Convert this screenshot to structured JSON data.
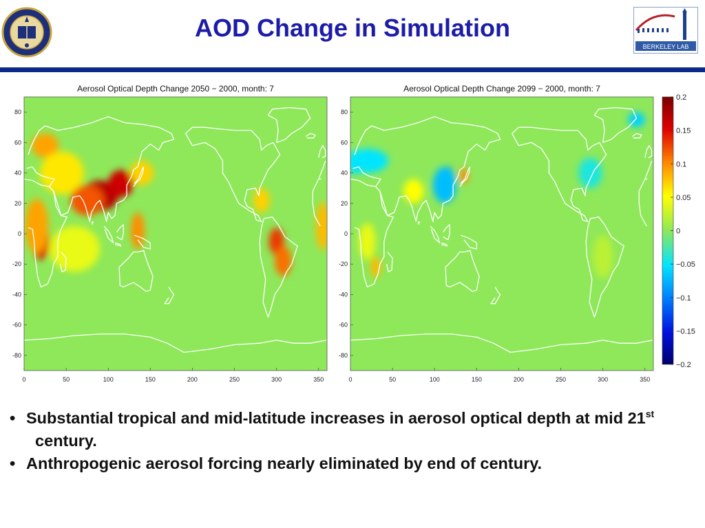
{
  "slide": {
    "title": "AOD Change in Simulation",
    "logo_left": "University of California seal logo",
    "logo_right_text": "BERKELEY LAB"
  },
  "colors": {
    "title": "#1c1ca8",
    "rule": "#0a2a8a",
    "map_background": "#8ee85a",
    "coastline": "#ffffff"
  },
  "bullets": [
    {
      "text": "Substantial tropical and mid-latitude increases in aerosol optical depth at mid 21",
      "sup": "st",
      "tail": "  century."
    },
    {
      "text": "Anthropogenic aerosol forcing nearly eliminated by end of century."
    }
  ],
  "chart_data": [
    {
      "type": "heatmap",
      "title": "Aerosol Optical Depth Change 2050 − 2000, month: 7",
      "xlim": [
        0,
        360
      ],
      "ylim": [
        -90,
        90
      ],
      "x_ticks": [
        0,
        50,
        100,
        150,
        200,
        250,
        300,
        350
      ],
      "y_ticks": [
        80,
        60,
        40,
        20,
        0,
        -20,
        -40,
        -60,
        -80
      ],
      "value_range": [
        -0.2,
        0.2
      ],
      "hotspots": [
        {
          "lon": 90,
          "lat": 25,
          "value": 0.17,
          "rx": 22,
          "ry": 10
        },
        {
          "lon": 115,
          "lat": 33,
          "value": 0.16,
          "rx": 15,
          "ry": 9
        },
        {
          "lon": 75,
          "lat": 22,
          "value": 0.12,
          "rx": 20,
          "ry": 10
        },
        {
          "lon": 20,
          "lat": -5,
          "value": 0.15,
          "rx": 10,
          "ry": 12
        },
        {
          "lon": 15,
          "lat": 5,
          "value": 0.09,
          "rx": 14,
          "ry": 18
        },
        {
          "lon": 25,
          "lat": 58,
          "value": 0.09,
          "rx": 16,
          "ry": 8
        },
        {
          "lon": 45,
          "lat": 40,
          "value": 0.06,
          "rx": 26,
          "ry": 14
        },
        {
          "lon": 140,
          "lat": 40,
          "value": 0.07,
          "rx": 14,
          "ry": 8
        },
        {
          "lon": 135,
          "lat": 2,
          "value": 0.1,
          "rx": 8,
          "ry": 12
        },
        {
          "lon": 300,
          "lat": -5,
          "value": 0.13,
          "rx": 9,
          "ry": 9
        },
        {
          "lon": 308,
          "lat": -18,
          "value": 0.11,
          "rx": 10,
          "ry": 10
        },
        {
          "lon": 282,
          "lat": 22,
          "value": 0.07,
          "rx": 10,
          "ry": 8
        },
        {
          "lon": 355,
          "lat": 5,
          "value": 0.08,
          "rx": 8,
          "ry": 16
        },
        {
          "lon": 60,
          "lat": -10,
          "value": 0.04,
          "rx": 30,
          "ry": 15
        }
      ]
    },
    {
      "type": "heatmap",
      "title": "Aerosol Optical Depth Change 2099 − 2000, month: 7",
      "xlim": [
        0,
        360
      ],
      "ylim": [
        -90,
        90
      ],
      "x_ticks": [
        0,
        50,
        100,
        150,
        200,
        250,
        300,
        350
      ],
      "y_ticks": [
        80,
        60,
        40,
        20,
        0,
        -20,
        -40,
        -60,
        -80
      ],
      "value_range": [
        -0.2,
        0.2
      ],
      "hotspots": [
        {
          "lon": 117,
          "lat": 35,
          "value": -0.12,
          "rx": 6,
          "ry": 9
        },
        {
          "lon": 112,
          "lat": 32,
          "value": -0.07,
          "rx": 14,
          "ry": 12
        },
        {
          "lon": 135,
          "lat": 38,
          "value": 0.1,
          "rx": 5,
          "ry": 5
        },
        {
          "lon": 20,
          "lat": 48,
          "value": -0.05,
          "rx": 25,
          "ry": 8
        },
        {
          "lon": 5,
          "lat": 45,
          "value": -0.05,
          "rx": 8,
          "ry": 6
        },
        {
          "lon": 75,
          "lat": 28,
          "value": 0.05,
          "rx": 12,
          "ry": 8
        },
        {
          "lon": 30,
          "lat": -22,
          "value": 0.08,
          "rx": 6,
          "ry": 7
        },
        {
          "lon": 20,
          "lat": -5,
          "value": 0.04,
          "rx": 10,
          "ry": 12
        },
        {
          "lon": 285,
          "lat": 40,
          "value": -0.04,
          "rx": 14,
          "ry": 10
        },
        {
          "lon": 340,
          "lat": 75,
          "value": -0.06,
          "rx": 10,
          "ry": 5
        },
        {
          "lon": 300,
          "lat": -15,
          "value": 0.02,
          "rx": 12,
          "ry": 14
        }
      ]
    }
  ],
  "colorbar": {
    "ticks": [
      "0.2",
      "0.15",
      "0.1",
      "0.05",
      "0",
      "−0.05",
      "−0.1",
      "−0.15",
      "−0.2"
    ],
    "range": [
      -0.2,
      0.2
    ]
  }
}
